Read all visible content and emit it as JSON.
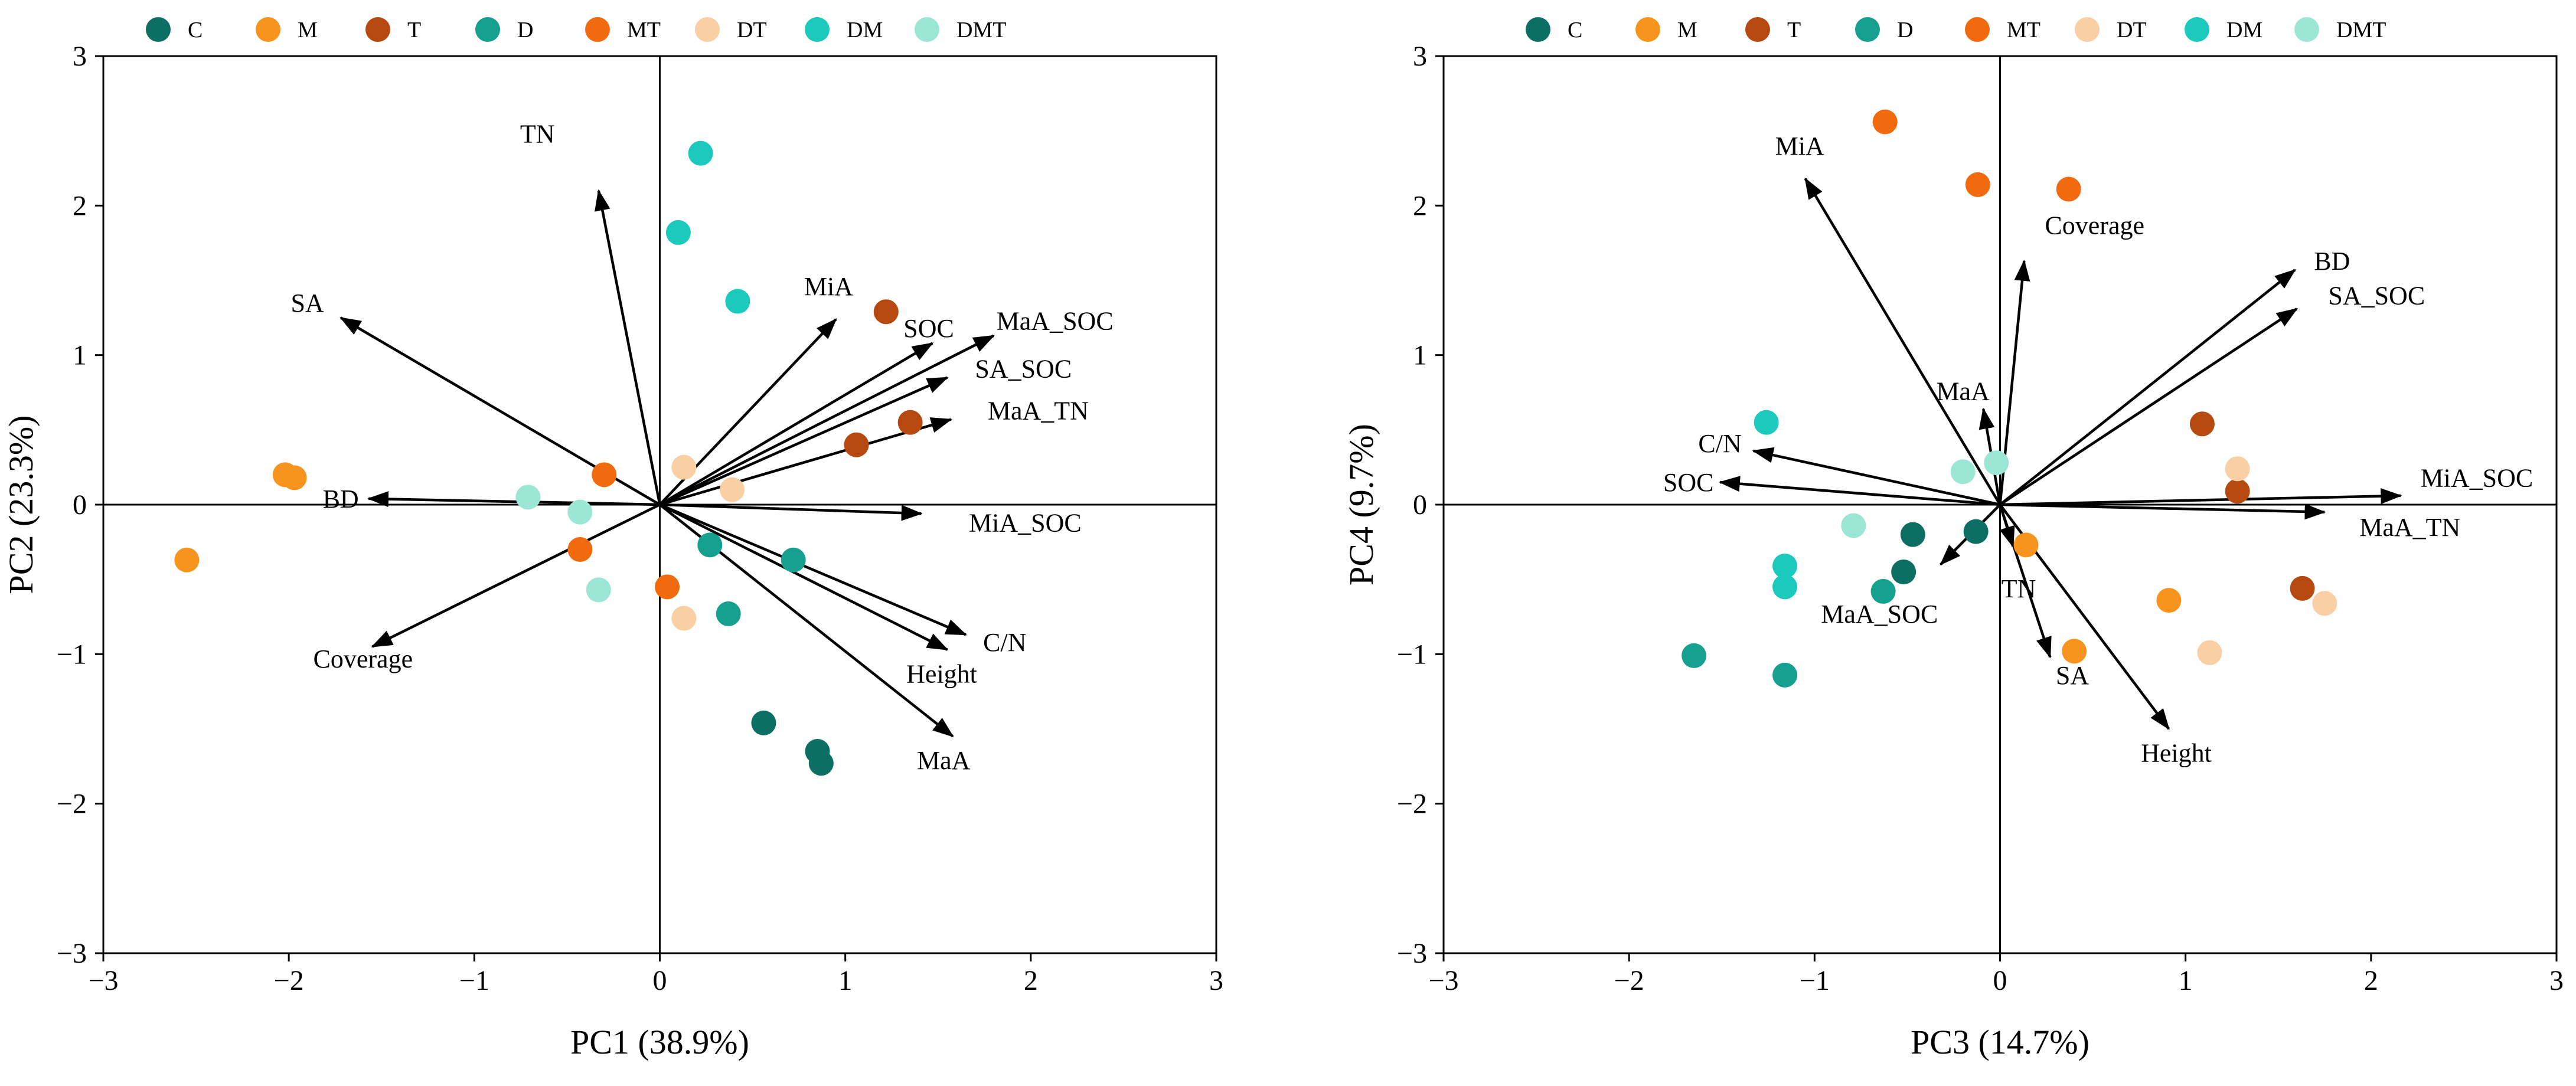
{
  "chart_data": [
    {
      "type": "scatter",
      "subtype": "pca-biplot",
      "xlabel": "PC1 (38.9%)",
      "ylabel": "PC2 (23.3%)",
      "xlim": [
        -3,
        3
      ],
      "ylim": [
        -3,
        3
      ],
      "xticks": [
        -3,
        -2,
        -1,
        0,
        1,
        2,
        3
      ],
      "yticks": [
        -3,
        -2,
        -1,
        0,
        1,
        2,
        3
      ],
      "legend_position": "top",
      "groups": [
        {
          "name": "C",
          "color": "#0d6e63"
        },
        {
          "name": "M",
          "color": "#f7941d"
        },
        {
          "name": "T",
          "color": "#b5490f"
        },
        {
          "name": "D",
          "color": "#16a090"
        },
        {
          "name": "MT",
          "color": "#f26a0e"
        },
        {
          "name": "DT",
          "color": "#f9cfa3"
        },
        {
          "name": "DM",
          "color": "#1cc9bd"
        },
        {
          "name": "DMT",
          "color": "#9be6d4"
        }
      ],
      "points": [
        {
          "group": "C",
          "x": 0.56,
          "y": -1.46
        },
        {
          "group": "C",
          "x": 0.85,
          "y": -1.65
        },
        {
          "group": "C",
          "x": 0.87,
          "y": -1.73
        },
        {
          "group": "M",
          "x": -2.02,
          "y": 0.2
        },
        {
          "group": "M",
          "x": -1.97,
          "y": 0.18
        },
        {
          "group": "M",
          "x": -2.55,
          "y": -0.37
        },
        {
          "group": "T",
          "x": 1.22,
          "y": 1.29
        },
        {
          "group": "T",
          "x": 1.06,
          "y": 0.4
        },
        {
          "group": "T",
          "x": 1.35,
          "y": 0.55
        },
        {
          "group": "D",
          "x": 0.27,
          "y": -0.27
        },
        {
          "group": "D",
          "x": 0.72,
          "y": -0.37
        },
        {
          "group": "D",
          "x": 0.37,
          "y": -0.73
        },
        {
          "group": "MT",
          "x": -0.3,
          "y": 0.2
        },
        {
          "group": "MT",
          "x": -0.43,
          "y": -0.3
        },
        {
          "group": "MT",
          "x": 0.04,
          "y": -0.55
        },
        {
          "group": "DT",
          "x": 0.13,
          "y": 0.25
        },
        {
          "group": "DT",
          "x": 0.39,
          "y": 0.1
        },
        {
          "group": "DT",
          "x": 0.13,
          "y": -0.76
        },
        {
          "group": "DM",
          "x": 0.22,
          "y": 2.35
        },
        {
          "group": "DM",
          "x": 0.1,
          "y": 1.82
        },
        {
          "group": "DM",
          "x": 0.42,
          "y": 1.36
        },
        {
          "group": "DMT",
          "x": -0.71,
          "y": 0.05
        },
        {
          "group": "DMT",
          "x": -0.43,
          "y": -0.05
        },
        {
          "group": "DMT",
          "x": -0.33,
          "y": -0.57
        }
      ],
      "arrows": [
        {
          "label": "TN",
          "x": -0.33,
          "y": 2.1,
          "label_dx": -0.33,
          "label_dy": 0.38
        },
        {
          "label": "SA",
          "x": -1.72,
          "y": 1.25,
          "label_dx": -0.18,
          "label_dy": 0.1
        },
        {
          "label": "BD",
          "x": -1.57,
          "y": 0.04,
          "label_dx": -0.15,
          "label_dy": 0.0
        },
        {
          "label": "Coverage",
          "x": -1.55,
          "y": -0.95,
          "label_dx": -0.05,
          "label_dy": -0.08
        },
        {
          "label": "MiA",
          "x": 0.95,
          "y": 1.24,
          "label_dx": -0.04,
          "label_dy": 0.22
        },
        {
          "label": "SOC",
          "x": 1.47,
          "y": 1.08,
          "label_dx": -0.02,
          "label_dy": 0.1
        },
        {
          "label": "MaA_SOC",
          "x": 1.8,
          "y": 1.13,
          "label_dx": 0.33,
          "label_dy": 0.1
        },
        {
          "label": "SA_SOC",
          "x": 1.55,
          "y": 0.85,
          "label_dx": 0.41,
          "label_dy": 0.06
        },
        {
          "label": "MaA_TN",
          "x": 1.57,
          "y": 0.57,
          "label_dx": 0.47,
          "label_dy": 0.06
        },
        {
          "label": "MiA_SOC",
          "x": 1.41,
          "y": -0.06,
          "label_dx": 0.56,
          "label_dy": -0.06
        },
        {
          "label": "C/N",
          "x": 1.65,
          "y": -0.87,
          "label_dx": 0.21,
          "label_dy": -0.05
        },
        {
          "label": "Height",
          "x": 1.55,
          "y": -0.97,
          "label_dx": -0.03,
          "label_dy": -0.16
        },
        {
          "label": "MaA",
          "x": 1.58,
          "y": -1.55,
          "label_dx": -0.05,
          "label_dy": -0.16
        }
      ]
    },
    {
      "type": "scatter",
      "subtype": "pca-biplot",
      "xlabel": "PC3 (14.7%)",
      "ylabel": "PC4 (9.7%)",
      "xlim": [
        -3,
        3
      ],
      "ylim": [
        -3,
        3
      ],
      "xticks": [
        -3,
        -2,
        -1,
        0,
        1,
        2,
        3
      ],
      "yticks": [
        -3,
        -2,
        -1,
        0,
        1,
        2,
        3
      ],
      "legend_position": "top",
      "groups": [
        {
          "name": "C",
          "color": "#0d6e63"
        },
        {
          "name": "M",
          "color": "#f7941d"
        },
        {
          "name": "T",
          "color": "#b5490f"
        },
        {
          "name": "D",
          "color": "#16a090"
        },
        {
          "name": "MT",
          "color": "#f26a0e"
        },
        {
          "name": "DT",
          "color": "#f9cfa3"
        },
        {
          "name": "DM",
          "color": "#1cc9bd"
        },
        {
          "name": "DMT",
          "color": "#9be6d4"
        }
      ],
      "points": [
        {
          "group": "C",
          "x": -0.47,
          "y": -0.2
        },
        {
          "group": "C",
          "x": -0.52,
          "y": -0.45
        },
        {
          "group": "C",
          "x": -0.13,
          "y": -0.18
        },
        {
          "group": "M",
          "x": 0.14,
          "y": -0.27
        },
        {
          "group": "M",
          "x": 0.91,
          "y": -0.64
        },
        {
          "group": "M",
          "x": 0.4,
          "y": -0.98
        },
        {
          "group": "T",
          "x": 1.09,
          "y": 0.54
        },
        {
          "group": "T",
          "x": 1.28,
          "y": 0.09
        },
        {
          "group": "T",
          "x": 1.63,
          "y": -0.56
        },
        {
          "group": "D",
          "x": -0.63,
          "y": -0.58
        },
        {
          "group": "D",
          "x": -1.16,
          "y": -1.14
        },
        {
          "group": "D",
          "x": -1.65,
          "y": -1.01
        },
        {
          "group": "MT",
          "x": -0.62,
          "y": 2.56
        },
        {
          "group": "MT",
          "x": -0.12,
          "y": 2.14
        },
        {
          "group": "MT",
          "x": 0.37,
          "y": 2.11
        },
        {
          "group": "DT",
          "x": 1.28,
          "y": 0.24
        },
        {
          "group": "DT",
          "x": 1.75,
          "y": -0.66
        },
        {
          "group": "DT",
          "x": 1.13,
          "y": -0.99
        },
        {
          "group": "DM",
          "x": -1.26,
          "y": 0.55
        },
        {
          "group": "DM",
          "x": -1.16,
          "y": -0.41
        },
        {
          "group": "DM",
          "x": -1.16,
          "y": -0.55
        },
        {
          "group": "DMT",
          "x": -0.2,
          "y": 0.22
        },
        {
          "group": "DMT",
          "x": -0.02,
          "y": 0.28
        },
        {
          "group": "DMT",
          "x": -0.79,
          "y": -0.14
        }
      ],
      "arrows": [
        {
          "label": "MiA",
          "x": -1.05,
          "y": 2.18,
          "label_dx": -0.03,
          "label_dy": 0.22
        },
        {
          "label": "Coverage",
          "x": 0.13,
          "y": 1.63,
          "label_dx": 0.38,
          "label_dy": 0.24
        },
        {
          "label": "BD",
          "x": 1.59,
          "y": 1.57,
          "label_dx": 0.2,
          "label_dy": 0.06
        },
        {
          "label": "SA_SOC",
          "x": 1.6,
          "y": 1.31,
          "label_dx": 0.43,
          "label_dy": 0.09
        },
        {
          "label": "MaA",
          "x": -0.09,
          "y": 0.64,
          "label_dx": -0.11,
          "label_dy": 0.12
        },
        {
          "label": "C/N",
          "x": -1.33,
          "y": 0.36,
          "label_dx": -0.18,
          "label_dy": 0.05
        },
        {
          "label": "SOC",
          "x": -1.51,
          "y": 0.15,
          "label_dx": -0.17,
          "label_dy": -0.0
        },
        {
          "label": "MiA_SOC",
          "x": 2.16,
          "y": 0.06,
          "label_dx": 0.41,
          "label_dy": 0.12
        },
        {
          "label": "MaA_TN",
          "x": 1.75,
          "y": -0.05,
          "label_dx": 0.46,
          "label_dy": -0.1
        },
        {
          "label": "MaA_SOC",
          "x": -0.32,
          "y": -0.4,
          "label_dx": -0.33,
          "label_dy": -0.33
        },
        {
          "label": "TN",
          "x": 0.07,
          "y": -0.28,
          "label_dx": 0.03,
          "label_dy": -0.28
        },
        {
          "label": "SA",
          "x": 0.27,
          "y": -1.02,
          "label_dx": 0.12,
          "label_dy": -0.12
        },
        {
          "label": "Height",
          "x": 0.91,
          "y": -1.5,
          "label_dx": 0.04,
          "label_dy": -0.16
        }
      ]
    }
  ]
}
